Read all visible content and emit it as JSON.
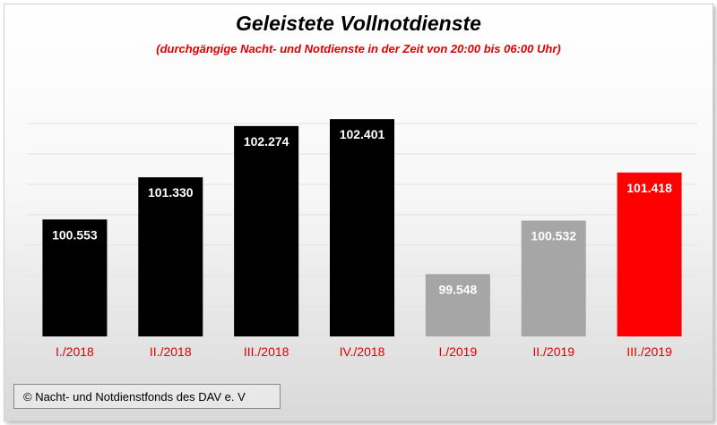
{
  "chart_data": {
    "type": "bar",
    "title": "Geleistete  Vollnotdienste",
    "subtitle": "(durchgängige Nacht- und Notdienste in der Zeit von 20:00 bis 06:00 Uhr)",
    "categories": [
      "I./2018",
      "II./2018",
      "III./2018",
      "IV./2018",
      "I./2019",
      "II./2019",
      "III./2019"
    ],
    "values": [
      100553,
      101330,
      102274,
      102401,
      99548,
      100532,
      101418
    ],
    "value_labels": [
      "100.553",
      "101.330",
      "102.274",
      "102.401",
      "99.548",
      "100.532",
      "101.418"
    ],
    "bar_colors": [
      "#000000",
      "#000000",
      "#000000",
      "#000000",
      "#a6a6a6",
      "#a6a6a6",
      "#ff0000"
    ],
    "category_label_color": "#e00000",
    "value_label_color": "#ffffff",
    "ylim": [
      98400,
      102700
    ],
    "grid": true,
    "xlabel": "",
    "ylabel": ""
  },
  "footer": {
    "text": "© Nacht- und Notdienstfonds des DAV e. V"
  }
}
